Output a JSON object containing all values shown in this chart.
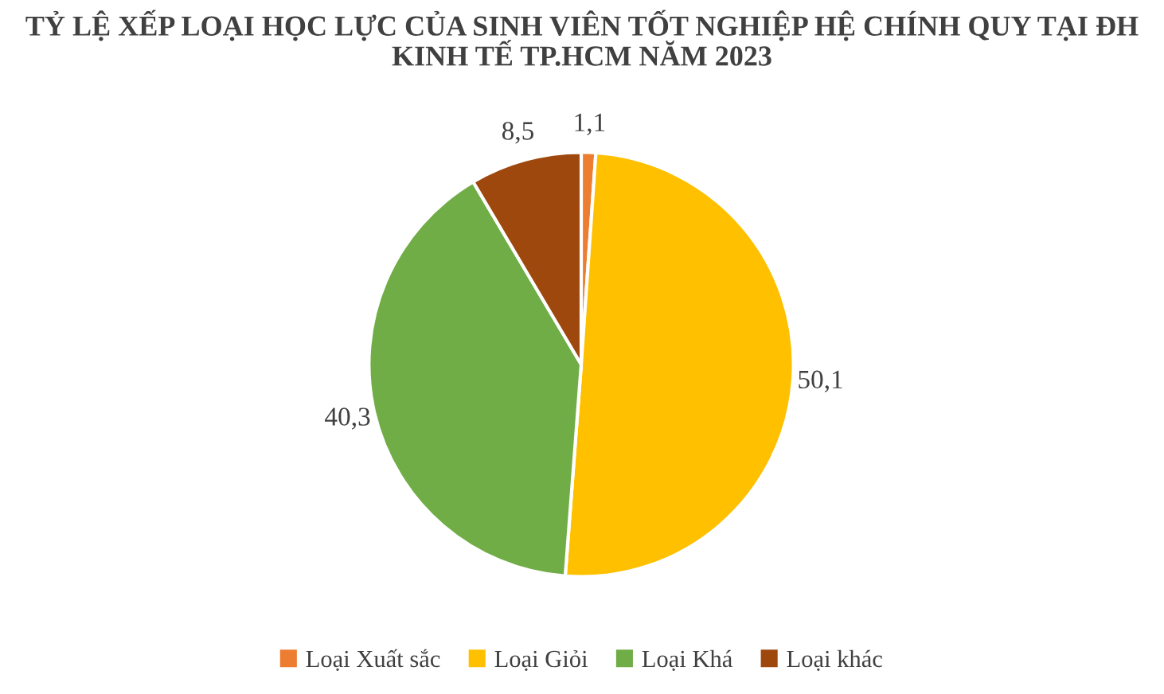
{
  "chart_data": {
    "type": "pie",
    "title": "TỶ LỆ XẾP LOẠI HỌC LỰC CỦA SINH VIÊN TỐT NGHIỆP HỆ CHÍNH QUY TẠI ĐH KINH TẾ TP.HCM NĂM 2023",
    "categories": [
      "Loại Xuất sắc",
      "Loại Giỏi",
      "Loại Khá",
      "Loại khác"
    ],
    "values": [
      1.1,
      50.1,
      40.3,
      8.5
    ],
    "value_labels": [
      "1,1",
      "50,1",
      "40,3",
      "8,5"
    ],
    "colors": [
      "#ed7d31",
      "#ffc000",
      "#70ad47",
      "#9e480e"
    ],
    "legend": "bottom"
  }
}
